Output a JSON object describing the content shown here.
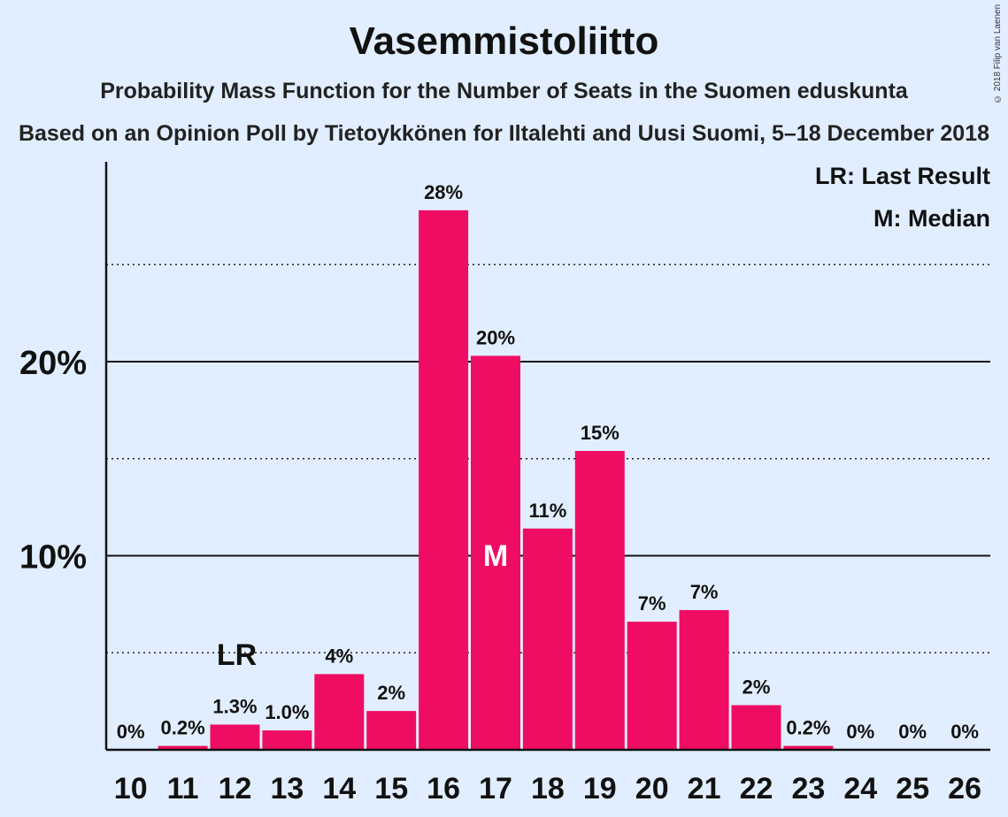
{
  "title": "Vasemmistoliitto",
  "subtitle": "Probability Mass Function for the Number of Seats in the Suomen eduskunta",
  "subtitle2": "Based on an Opinion Poll by Tietoykkönen for Iltalehti and Uusi Suomi, 5–18 December 2018",
  "copyright": "© 2018 Filip van Laenen",
  "legend": {
    "last_result": "LR: Last Result",
    "median": "M: Median"
  },
  "colors": {
    "bar": "#ef0d63",
    "background": "#e1eeff"
  },
  "chart_data": {
    "type": "bar",
    "categories": [
      "10",
      "11",
      "12",
      "13",
      "14",
      "15",
      "16",
      "17",
      "18",
      "19",
      "20",
      "21",
      "22",
      "23",
      "24",
      "25",
      "26"
    ],
    "values": [
      0,
      0.2,
      1.3,
      1.0,
      3.9,
      2.0,
      27.8,
      20.3,
      11.4,
      15.4,
      6.6,
      7.2,
      2.3,
      0.2,
      0,
      0,
      0
    ],
    "value_labels": [
      "0%",
      "0.2%",
      "1.3%",
      "1.0%",
      "4%",
      "2%",
      "28%",
      "20%",
      "11%",
      "15%",
      "7%",
      "7%",
      "2%",
      "0.2%",
      "0%",
      "0%",
      "0%"
    ],
    "ylim": [
      0,
      30
    ],
    "yticks": [
      {
        "value": 10,
        "label": "10%"
      },
      {
        "value": 20,
        "label": "20%"
      }
    ],
    "minor_gridlines": [
      5,
      15,
      25
    ],
    "last_result": {
      "category": "12",
      "label": "LR"
    },
    "median": {
      "category": "17",
      "label": "M"
    },
    "legend_position": "top-right"
  }
}
